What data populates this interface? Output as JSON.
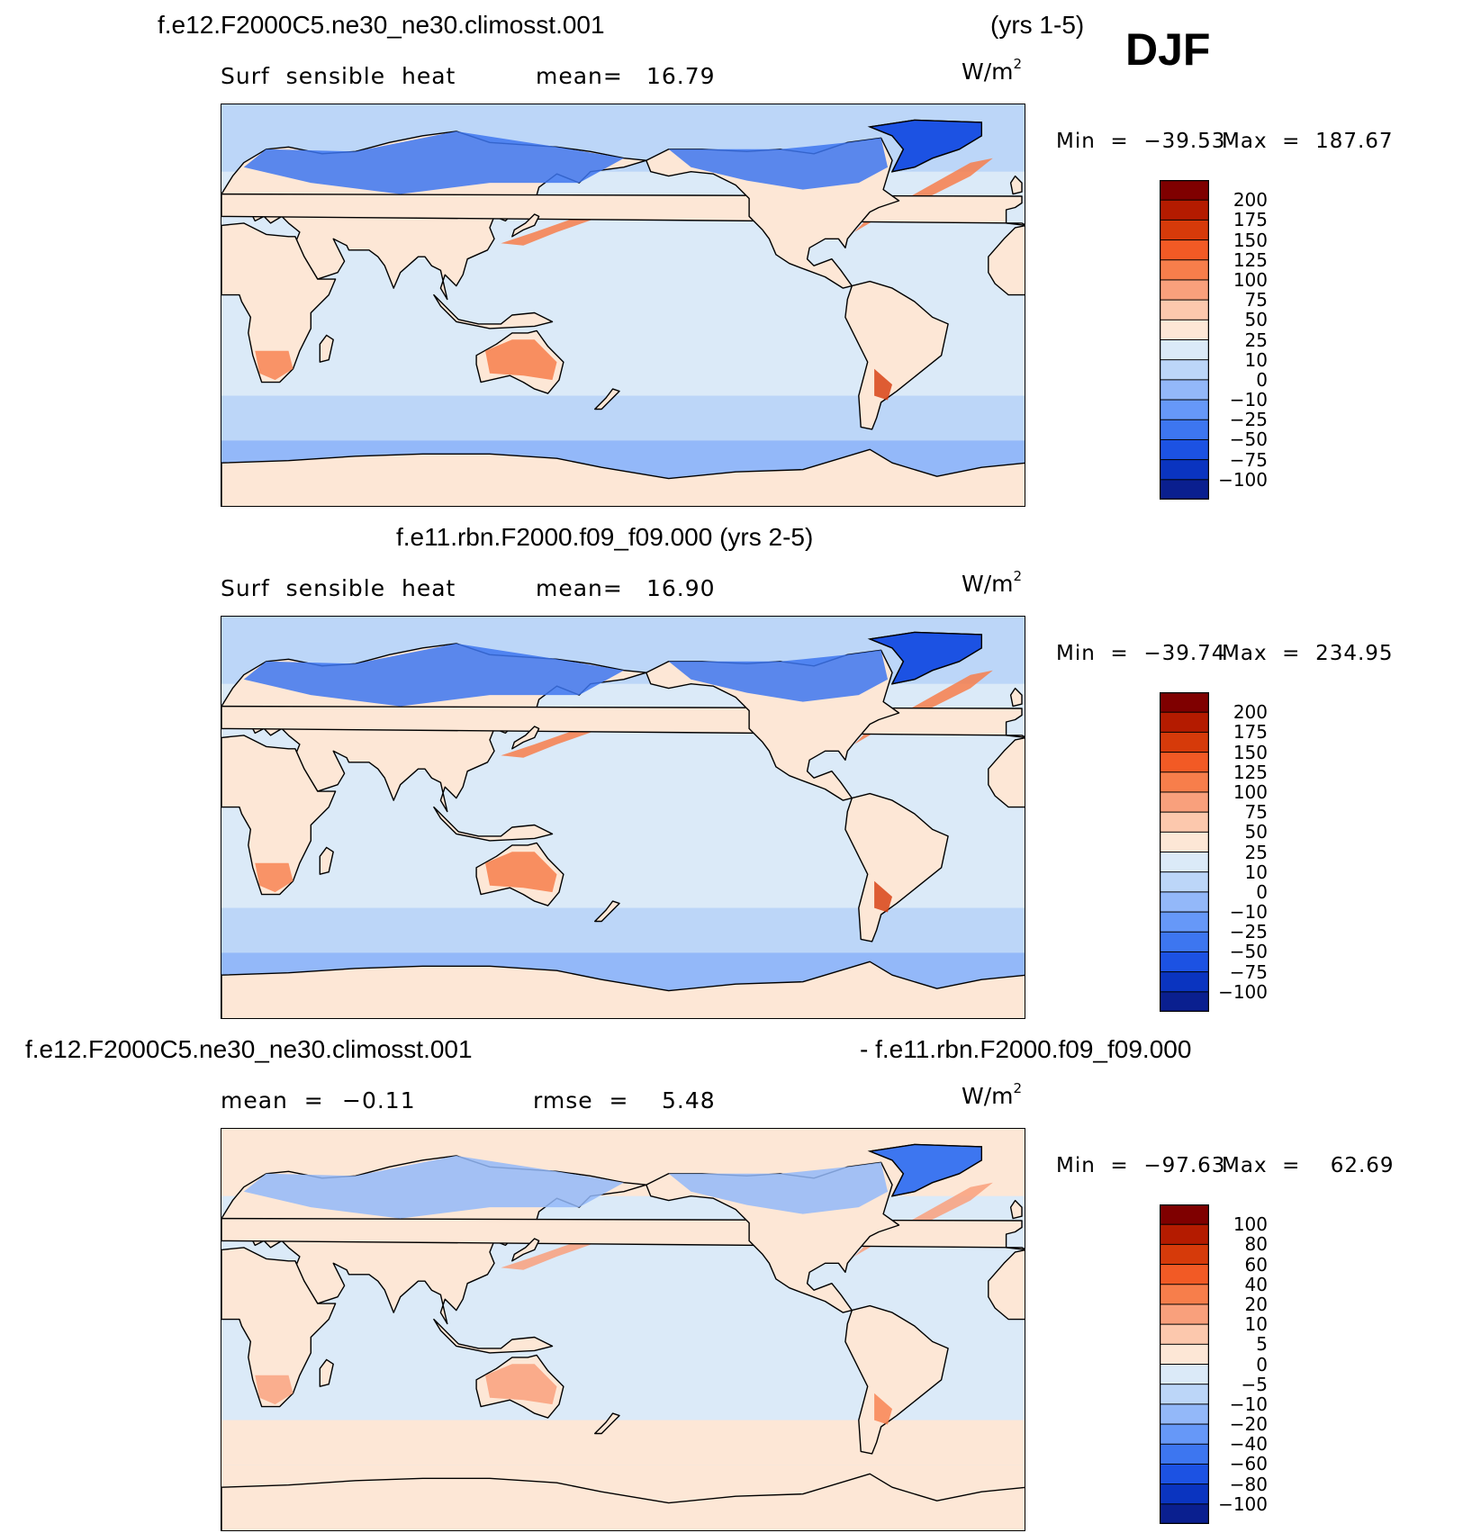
{
  "header": {
    "case1": "f.e12.F2000C5.ne30_ne30.climosst.001",
    "years1": "(yrs 1-5)",
    "season": "DJF",
    "case2": "f.e11.rbn.F2000.f09_f09.000 (yrs 2-5)",
    "diff_left": "f.e12.F2000C5.ne30_ne30.climosst.001",
    "diff_right": "- f.e11.rbn.F2000.f09_f09.000"
  },
  "panels": [
    {
      "variable": "Surf  sensible  heat",
      "stat_label": "mean=",
      "stat_value": "16.79",
      "stat2_label": "",
      "stat2_value": "",
      "units_base": "W/m",
      "units_exp": "2",
      "min_label": "Min  =  −39.53",
      "max_label": "Max  =  187.67",
      "levels": [
        "200",
        "175",
        "150",
        "125",
        "100",
        "75",
        "50",
        "25",
        "10",
        "0",
        "−10",
        "−25",
        "−50",
        "−75",
        "−100"
      ],
      "colors": [
        "#7f0000",
        "#b41b00",
        "#d63a0a",
        "#f25a25",
        "#f77e4b",
        "#f9a07c",
        "#fcc8ad",
        "#fde7d6",
        "#dbeaf8",
        "#bcd6f8",
        "#93b8f9",
        "#6698f8",
        "#3d76f0",
        "#1c52e3",
        "#0a34c0",
        "#0a1f8f"
      ]
    },
    {
      "variable": "Surf  sensible  heat",
      "stat_label": "mean=",
      "stat_value": "16.90",
      "stat2_label": "",
      "stat2_value": "",
      "units_base": "W/m",
      "units_exp": "2",
      "min_label": "Min  =  −39.74",
      "max_label": "Max  =  234.95",
      "levels": [
        "200",
        "175",
        "150",
        "125",
        "100",
        "75",
        "50",
        "25",
        "10",
        "0",
        "−10",
        "−25",
        "−50",
        "−75",
        "−100"
      ],
      "colors": [
        "#7f0000",
        "#b41b00",
        "#d63a0a",
        "#f25a25",
        "#f77e4b",
        "#f9a07c",
        "#fcc8ad",
        "#fde7d6",
        "#dbeaf8",
        "#bcd6f8",
        "#93b8f9",
        "#6698f8",
        "#3d76f0",
        "#1c52e3",
        "#0a34c0",
        "#0a1f8f"
      ]
    },
    {
      "variable": "",
      "stat_label": "mean  =",
      "stat_value": "−0.11",
      "stat2_label": "rmse  =",
      "stat2_value": "5.48",
      "units_base": "W/m",
      "units_exp": "2",
      "min_label": "Min  =  −97.63",
      "max_label": "Max  =    62.69",
      "levels": [
        "100",
        "80",
        "60",
        "40",
        "20",
        "10",
        "5",
        "0",
        "−5",
        "−10",
        "−20",
        "−40",
        "−60",
        "−80",
        "−100"
      ],
      "colors": [
        "#7f0000",
        "#b41b00",
        "#d63a0a",
        "#f25a25",
        "#f77e4b",
        "#f9a07c",
        "#fcc8ad",
        "#fde7d6",
        "#dbeaf8",
        "#bcd6f8",
        "#93b8f9",
        "#6698f8",
        "#3d76f0",
        "#1c52e3",
        "#0a34c0",
        "#0a1f8f"
      ]
    }
  ]
}
